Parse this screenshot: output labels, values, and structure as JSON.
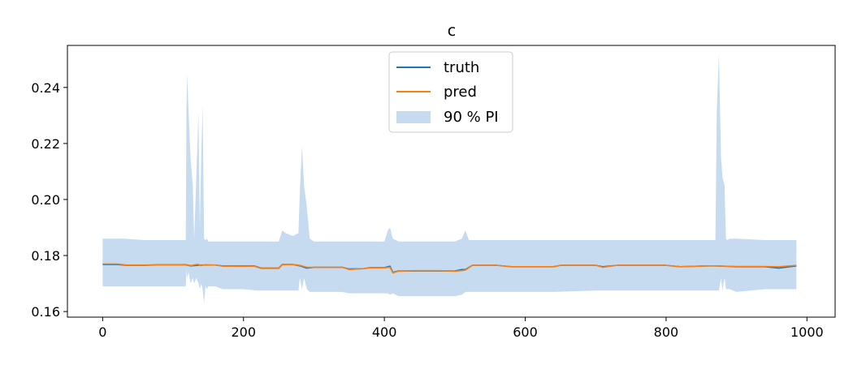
{
  "chart_data": {
    "type": "line",
    "title": "c",
    "xlabel": "",
    "ylabel": "",
    "xlim": [
      -50,
      1040
    ],
    "ylim": [
      0.158,
      0.255
    ],
    "xticks": [
      0,
      200,
      400,
      600,
      800,
      1000
    ],
    "yticks": [
      0.16,
      0.18,
      0.2,
      0.22,
      0.24
    ],
    "xtick_labels": [
      "0",
      "200",
      "400",
      "600",
      "800",
      "1000"
    ],
    "ytick_labels": [
      "0.16",
      "0.18",
      "0.20",
      "0.22",
      "0.24"
    ],
    "grid": false,
    "legend_position": "top-center",
    "colors": {
      "truth": "#1f77b4",
      "pred": "#ff7f0e",
      "band": "#c6dbef"
    },
    "series": [
      {
        "name": "truth",
        "x": [
          0,
          20,
          35,
          60,
          80,
          100,
          118,
          125,
          140,
          145,
          160,
          170,
          200,
          215,
          225,
          250,
          255,
          270,
          280,
          290,
          300,
          340,
          350,
          370,
          380,
          400,
          408,
          412,
          420,
          440,
          480,
          500,
          510,
          515,
          525,
          560,
          580,
          640,
          650,
          700,
          710,
          730,
          800,
          820,
          860,
          870,
          900,
          940,
          960,
          985
        ],
        "values": [
          0.1768,
          0.1768,
          0.1765,
          0.1765,
          0.1767,
          0.1767,
          0.1767,
          0.1763,
          0.1766,
          0.1766,
          0.1766,
          0.1763,
          0.1763,
          0.1763,
          0.1755,
          0.1755,
          0.1768,
          0.1768,
          0.1763,
          0.1755,
          0.1758,
          0.1758,
          0.1752,
          0.1753,
          0.1757,
          0.1757,
          0.1762,
          0.174,
          0.1745,
          0.1745,
          0.1745,
          0.1745,
          0.175,
          0.175,
          0.1765,
          0.1765,
          0.176,
          0.176,
          0.1765,
          0.1765,
          0.176,
          0.1765,
          0.1765,
          0.176,
          0.1763,
          0.1763,
          0.176,
          0.176,
          0.1755,
          0.1763
        ]
      },
      {
        "name": "pred",
        "x": [
          0,
          20,
          35,
          60,
          80,
          100,
          118,
          125,
          135,
          140,
          145,
          160,
          170,
          200,
          215,
          225,
          250,
          255,
          270,
          280,
          290,
          300,
          340,
          350,
          370,
          380,
          400,
          408,
          412,
          420,
          440,
          480,
          500,
          510,
          515,
          525,
          560,
          580,
          640,
          650,
          700,
          710,
          730,
          800,
          820,
          860,
          870,
          900,
          940,
          960,
          985
        ],
        "values": [
          0.177,
          0.177,
          0.1766,
          0.1766,
          0.1767,
          0.1767,
          0.1768,
          0.1764,
          0.1769,
          0.1764,
          0.1767,
          0.1766,
          0.1762,
          0.1762,
          0.1762,
          0.1754,
          0.1754,
          0.1767,
          0.1768,
          0.1765,
          0.1758,
          0.1758,
          0.1758,
          0.175,
          0.1753,
          0.1756,
          0.1756,
          0.1758,
          0.1738,
          0.1744,
          0.1746,
          0.1746,
          0.1744,
          0.1746,
          0.1748,
          0.1765,
          0.1765,
          0.176,
          0.176,
          0.1765,
          0.1765,
          0.1758,
          0.1765,
          0.1765,
          0.176,
          0.1763,
          0.1763,
          0.1761,
          0.1761,
          0.176,
          0.1765
        ]
      },
      {
        "name": "90 % PI",
        "type": "band",
        "x": [
          0,
          30,
          60,
          100,
          118,
          119,
          120,
          122,
          125,
          128,
          130,
          133,
          136,
          138,
          140,
          142,
          144,
          146,
          148,
          150,
          160,
          170,
          200,
          220,
          230,
          250,
          255,
          260,
          270,
          278,
          280,
          283,
          286,
          290,
          294,
          300,
          340,
          350,
          380,
          400,
          405,
          408,
          412,
          420,
          440,
          480,
          500,
          510,
          515,
          520,
          560,
          600,
          640,
          700,
          750,
          800,
          850,
          870,
          872,
          875,
          878,
          880,
          883,
          885,
          887,
          890,
          900,
          940,
          960,
          985
        ],
        "lower": [
          0.169,
          0.169,
          0.169,
          0.169,
          0.169,
          0.175,
          0.172,
          0.174,
          0.17,
          0.172,
          0.17,
          0.172,
          0.17,
          0.168,
          0.17,
          0.168,
          0.163,
          0.169,
          0.168,
          0.169,
          0.169,
          0.168,
          0.168,
          0.1675,
          0.1675,
          0.1675,
          0.1675,
          0.1675,
          0.1675,
          0.1675,
          0.172,
          0.168,
          0.172,
          0.168,
          0.167,
          0.167,
          0.167,
          0.1665,
          0.1665,
          0.1665,
          0.1665,
          0.166,
          0.1665,
          0.1655,
          0.1655,
          0.1655,
          0.1655,
          0.166,
          0.167,
          0.167,
          0.167,
          0.167,
          0.167,
          0.1675,
          0.1675,
          0.1675,
          0.1675,
          0.1675,
          0.1675,
          0.1675,
          0.172,
          0.1675,
          0.172,
          0.168,
          0.168,
          0.168,
          0.167,
          0.168,
          0.168,
          0.168
        ],
        "upper": [
          0.186,
          0.186,
          0.1855,
          0.1855,
          0.1855,
          0.232,
          0.245,
          0.231,
          0.214,
          0.205,
          0.186,
          0.208,
          0.231,
          0.19,
          0.215,
          0.234,
          0.186,
          0.1855,
          0.186,
          0.185,
          0.185,
          0.185,
          0.185,
          0.185,
          0.185,
          0.185,
          0.189,
          0.188,
          0.187,
          0.188,
          0.203,
          0.219,
          0.205,
          0.197,
          0.186,
          0.185,
          0.185,
          0.185,
          0.185,
          0.185,
          0.189,
          0.19,
          0.186,
          0.185,
          0.185,
          0.185,
          0.185,
          0.186,
          0.189,
          0.1855,
          0.1855,
          0.1855,
          0.1855,
          0.1855,
          0.1855,
          0.1855,
          0.1855,
          0.1855,
          0.232,
          0.252,
          0.215,
          0.208,
          0.205,
          0.186,
          0.1855,
          0.186,
          0.186,
          0.1855,
          0.1855,
          0.1855
        ]
      }
    ]
  }
}
